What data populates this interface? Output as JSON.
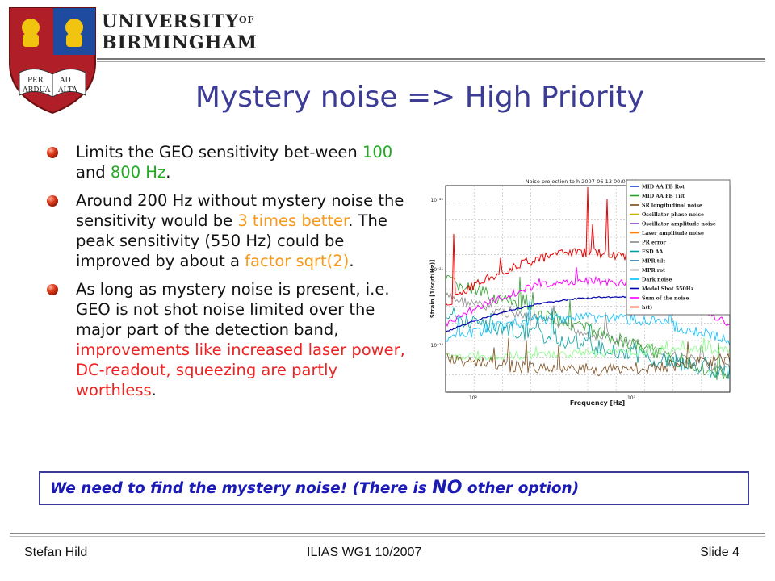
{
  "header": {
    "university_line1": "UNIVERSITY",
    "university_of": "OF",
    "university_line2": "BIRMINGHAM",
    "book_words": [
      "PER",
      "AD",
      "ARDUA",
      "ALTA"
    ]
  },
  "slide": {
    "title": "Mystery noise => High Priority",
    "bullet1": {
      "pre": "Limits the GEO sensitivity bet-ween ",
      "hi1": "100",
      "mid": " and ",
      "hi2": "800 Hz",
      "post": "."
    },
    "bullet2": {
      "pre": "Around 200 Hz without mystery noise the sensitivity would be ",
      "hi1": "3 times better",
      "mid": ". The peak sensitivity (550 Hz) could be improved by about a ",
      "hi2": "factor sqrt(2)",
      "post": "."
    },
    "bullet3": {
      "pre": "As long as mystery noise is present, i.e. GEO is not shot noise limited over the major part of the detection band, ",
      "hi": "improvements like increased laser power, DC-readout, squeezing are partly worthless",
      "post": "."
    },
    "callout": {
      "pre": "We need to find the mystery noise! (There is ",
      "big": "NO",
      "post": " other option)"
    }
  },
  "plot": {
    "title": "Noise projection to h 2007-06-13 00:00:00",
    "ylabel": "Strain [1/sqrt(Hz)]",
    "xlabel": "Frequency [Hz]",
    "y_ticks": [
      "10⁻²⁰",
      "10⁻²¹",
      "10⁻²²"
    ],
    "x_ticks": [
      "10²",
      "10³"
    ],
    "legend": [
      {
        "label": "MID AA FB Rot",
        "color": "#1f3fbf"
      },
      {
        "label": "MID AA FB Tilt",
        "color": "#2aa02a"
      },
      {
        "label": "SR longitudinal noise",
        "color": "#7a4a1a"
      },
      {
        "label": "Oscillator phase noise",
        "color": "#c8b400"
      },
      {
        "label": "Oscillator amplitude noise",
        "color": "#7f3fbf"
      },
      {
        "label": "Laser amplitude noise",
        "color": "#ff7f0e"
      },
      {
        "label": "PR error",
        "color": "#888888"
      },
      {
        "label": "ESD AA",
        "color": "#00a0a0"
      },
      {
        "label": "MPR tilt",
        "color": "#1f77b4"
      },
      {
        "label": "MPR rot",
        "color": "#6f6f6f"
      },
      {
        "label": "Dark noise",
        "color": "#00bfff"
      },
      {
        "label": "Model Shot 550Hz",
        "color": "#0000aa"
      },
      {
        "label": "Sum of the noise",
        "color": "#ff00ff"
      },
      {
        "label": "h(t)",
        "color": "#ee0000"
      }
    ]
  },
  "footer": {
    "author": "Stefan Hild",
    "event": "ILIAS WG1 10/2007",
    "slide": "Slide 4"
  }
}
